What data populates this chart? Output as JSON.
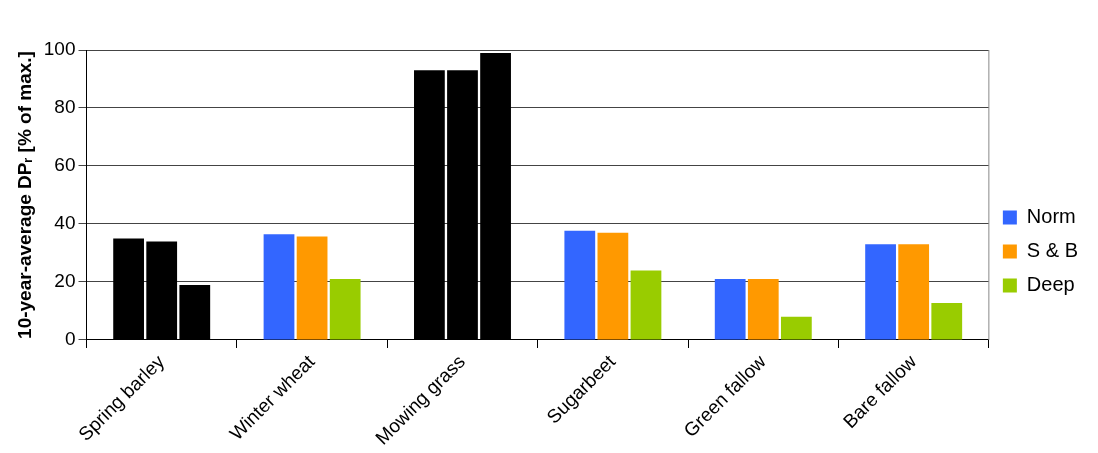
{
  "chart_data": {
    "type": "bar",
    "ylabel": "10-year-average DPᵣ [% of max.]",
    "categories": [
      "Spring barley",
      "Winter wheat",
      "Mowing grass",
      "Sugarbeet",
      "Green fallow",
      "Bare fallow"
    ],
    "series": [
      {
        "name": "Norm",
        "color": "#3366ff",
        "colors": [
          "#000000",
          "#3366ff",
          "#000000",
          "#3366ff",
          "#3366ff",
          "#3366ff"
        ],
        "values": [
          35,
          36.5,
          93,
          37.7,
          21,
          33
        ]
      },
      {
        "name": "S & B",
        "color": "#ff9900",
        "colors": [
          "#000000",
          "#ff9900",
          "#000000",
          "#ff9900",
          "#ff9900",
          "#ff9900"
        ],
        "values": [
          34,
          35.7,
          93,
          37,
          21,
          33
        ]
      },
      {
        "name": "Deep",
        "color": "#99cc00",
        "colors": [
          "#000000",
          "#99cc00",
          "#000000",
          "#99cc00",
          "#99cc00",
          "#99cc00"
        ],
        "values": [
          19,
          21,
          99,
          24,
          8,
          12.8
        ]
      }
    ],
    "ylim": [
      0,
      100
    ],
    "yticks": [
      0,
      20,
      40,
      60,
      80,
      100
    ],
    "grid": "y",
    "legend": "right"
  }
}
